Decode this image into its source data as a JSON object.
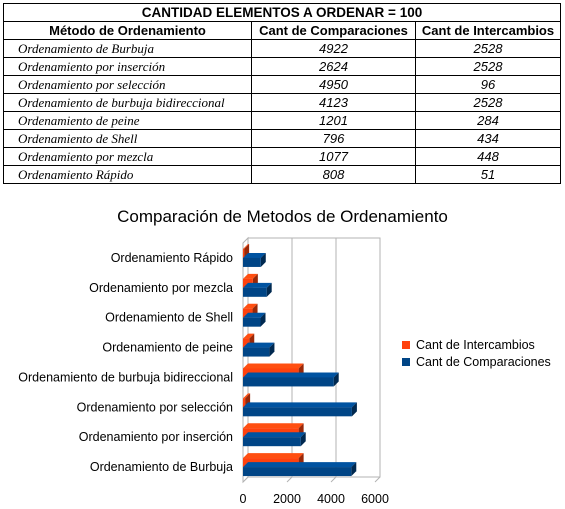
{
  "table": {
    "title": "CANTIDAD ELEMENTOS A ORDENAR = 100",
    "headers": [
      "Método de Ordenamiento",
      "Cant de Comparaciones",
      "Cant de Intercambios"
    ],
    "rows": [
      {
        "method": "Ordenamiento de Burbuja",
        "comparisons": "4922",
        "swaps": "2528"
      },
      {
        "method": "Ordenamiento por inserción",
        "comparisons": "2624",
        "swaps": "2528"
      },
      {
        "method": "Ordenamiento por selección",
        "comparisons": "4950",
        "swaps": "96"
      },
      {
        "method": "Ordenamiento de burbuja bidireccional",
        "comparisons": "4123",
        "swaps": "2528"
      },
      {
        "method": "Ordenamiento de peine",
        "comparisons": "1201",
        "swaps": "284"
      },
      {
        "method": "Ordenamiento de Shell",
        "comparisons": "796",
        "swaps": "434"
      },
      {
        "method": "Ordenamiento por mezcla",
        "comparisons": "1077",
        "swaps": "448"
      },
      {
        "method": "Ordenamiento Rápido",
        "comparisons": "808",
        "swaps": "51"
      }
    ]
  },
  "chart_data": {
    "type": "bar",
    "orientation": "horizontal",
    "title": "Comparación de Metodos de Ordenamiento",
    "categories": [
      "Ordenamiento de Burbuja",
      "Ordenamiento por inserción",
      "Ordenamiento por selección",
      "Ordenamiento de burbuja bidireccional",
      "Ordenamiento de peine",
      "Ordenamiento de Shell",
      "Ordenamiento por mezcla",
      "Ordenamiento Rápido"
    ],
    "series": [
      {
        "name": "Cant de Intercambios",
        "color": "#ff420e",
        "values": [
          2528,
          2528,
          96,
          2528,
          284,
          434,
          448,
          51
        ]
      },
      {
        "name": "Cant de Comparaciones",
        "color": "#004586",
        "values": [
          4922,
          2624,
          4950,
          4123,
          1201,
          796,
          1077,
          808
        ]
      }
    ],
    "xlim": [
      0,
      6000
    ],
    "xticks": [
      "0",
      "2000",
      "4000",
      "6000"
    ],
    "grid": true,
    "legend_position": "right"
  }
}
